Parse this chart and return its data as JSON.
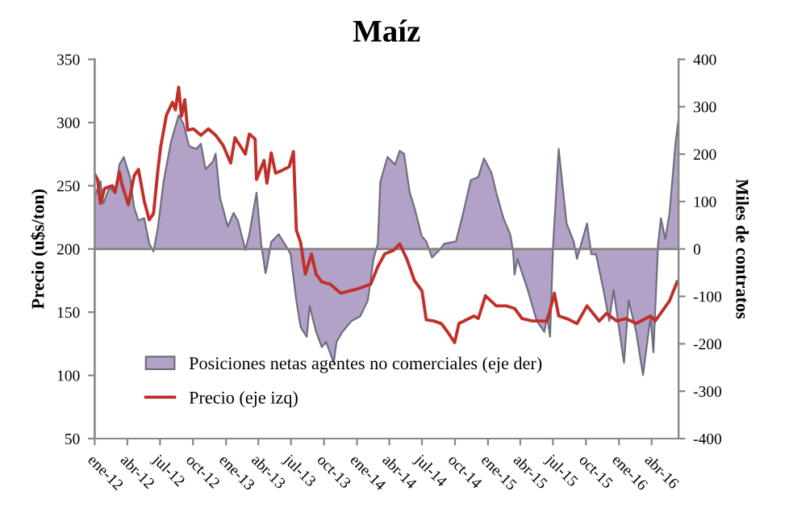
{
  "chart_data": {
    "type": "line",
    "title": "Maíz",
    "ylabel": "Precio (u$s/ton)",
    "y2label": "Miles de contratos",
    "x": [
      "2012-01-01",
      "2012-01-09",
      "2012-01-17",
      "2012-01-29",
      "2012-02-19",
      "2012-02-27",
      "2012-03-10",
      "2012-03-18",
      "2012-04-04",
      "2012-04-20",
      "2012-05-02",
      "2012-05-18",
      "2012-06-01",
      "2012-06-13",
      "2012-06-25",
      "2012-07-03",
      "2012-07-19",
      "2012-08-05",
      "2012-08-13",
      "2012-08-22",
      "2012-08-30",
      "2012-09-08",
      "2012-09-16",
      "2012-10-02",
      "2012-10-23",
      "2012-11-13",
      "2012-12-03",
      "2012-12-24",
      "2013-01-14",
      "2013-01-26",
      "2013-02-24",
      "2013-03-07",
      "2013-03-23",
      "2013-03-27",
      "2013-04-17",
      "2013-04-25",
      "2013-05-07",
      "2013-05-19",
      "2013-06-05",
      "2013-06-26",
      "2013-07-08",
      "2013-07-16",
      "2013-07-28",
      "2013-08-10",
      "2013-08-27",
      "2013-09-09",
      "2013-09-25",
      "2013-10-19",
      "2013-11-17",
      "2013-12-29",
      "2014-02-08",
      "2014-02-28",
      "2014-03-19",
      "2014-04-13",
      "2014-04-30",
      "2014-05-20",
      "2014-06-10",
      "2014-07-01",
      "2014-07-13",
      "2014-08-03",
      "2014-08-24",
      "2014-09-09",
      "2014-09-30",
      "2014-10-12",
      "2014-11-23",
      "2014-12-05",
      "2014-12-25",
      "2015-01-24",
      "2015-02-21",
      "2015-03-16",
      "2015-04-06",
      "2015-05-05",
      "2015-06-15",
      "2015-07-05",
      "2015-07-17",
      "2015-08-08",
      "2015-09-06",
      "2015-10-04",
      "2015-11-07",
      "2015-11-27",
      "2015-12-26",
      "2016-01-20",
      "2016-02-18",
      "2016-03-29",
      "2016-04-11",
      "2016-05-01",
      "2016-05-21",
      "2016-06-11"
    ],
    "series": [
      {
        "name": "Posiciones netas agentes no comerciales (eje der)",
        "type": "area",
        "axis": "y2",
        "color": "#b3a2c7",
        "x": [
          "2012-01-01",
          "2012-01-17",
          "2012-01-25",
          "2012-02-11",
          "2012-02-27",
          "2012-03-10",
          "2012-03-22",
          "2012-04-08",
          "2012-04-20",
          "2012-05-02",
          "2012-05-18",
          "2012-06-01",
          "2012-06-13",
          "2012-06-25",
          "2012-07-11",
          "2012-08-01",
          "2012-08-22",
          "2012-09-04",
          "2012-09-20",
          "2012-10-10",
          "2012-10-23",
          "2012-11-05",
          "2012-11-25",
          "2012-12-03",
          "2012-12-15",
          "2013-01-06",
          "2013-01-22",
          "2013-02-03",
          "2013-02-24",
          "2013-03-07",
          "2013-03-27",
          "2013-04-09",
          "2013-04-21",
          "2013-04-25",
          "2013-05-07",
          "2013-05-28",
          "2013-06-18",
          "2013-06-30",
          "2013-07-16",
          "2013-07-28",
          "2013-08-14",
          "2013-08-22",
          "2013-09-09",
          "2013-09-25",
          "2013-10-07",
          "2013-10-28",
          "2013-11-05",
          "2013-11-21",
          "2013-12-16",
          "2014-01-10",
          "2014-01-31",
          "2014-02-16",
          "2014-02-28",
          "2014-03-07",
          "2014-03-27",
          "2014-04-17",
          "2014-04-30",
          "2014-05-12",
          "2014-05-28",
          "2014-06-10",
          "2014-06-30",
          "2014-07-13",
          "2014-07-29",
          "2014-08-19",
          "2014-09-01",
          "2014-10-04",
          "2014-10-24",
          "2014-11-14",
          "2014-12-05",
          "2014-12-21",
          "2015-01-11",
          "2015-01-24",
          "2015-02-13",
          "2015-03-04",
          "2015-03-12",
          "2015-03-16",
          "2015-03-24",
          "2015-04-22",
          "2015-05-17",
          "2015-06-07",
          "2015-06-15",
          "2015-06-23",
          "2015-07-01",
          "2015-07-17",
          "2015-08-08",
          "2015-08-28",
          "2015-09-06",
          "2015-09-18",
          "2015-10-04",
          "2015-10-16",
          "2015-10-29",
          "2015-11-19",
          "2015-12-05",
          "2015-12-17",
          "2016-01-15",
          "2016-01-28",
          "2016-02-18",
          "2016-03-08",
          "2016-03-29",
          "2016-04-06",
          "2016-04-19",
          "2016-04-27",
          "2016-05-09",
          "2016-05-21",
          "2016-06-07",
          "2016-06-15"
        ],
        "values": [
          110,
          143,
          96,
          130,
          117,
          178,
          194,
          152,
          87,
          60,
          65,
          11,
          -5,
          44,
          142,
          227,
          282,
          265,
          217,
          211,
          222,
          168,
          184,
          201,
          109,
          47,
          76,
          60,
          -2,
          31,
          119,
          11,
          -51,
          -38,
          15,
          31,
          5,
          -11,
          -109,
          -165,
          -185,
          -120,
          -175,
          -207,
          -196,
          -240,
          -196,
          -175,
          -152,
          -142,
          -109,
          -21,
          11,
          142,
          194,
          178,
          207,
          201,
          119,
          87,
          28,
          16,
          -18,
          -2,
          11,
          16,
          76,
          145,
          152,
          191,
          160,
          119,
          65,
          31,
          -5,
          -54,
          -21,
          -87,
          -152,
          -175,
          -142,
          -185,
          0,
          211,
          54,
          15,
          -21,
          11,
          54,
          -11,
          -11,
          -87,
          -152,
          -87,
          -240,
          -109,
          -175,
          -266,
          -142,
          -218,
          11,
          65,
          21,
          76,
          227,
          273
        ]
      },
      {
        "name": "Precio (eje izq)",
        "axis": "y",
        "color": "#c0302b",
        "values": [
          259,
          255,
          236,
          248,
          250,
          245,
          261,
          250,
          235,
          258,
          263,
          238,
          223,
          228,
          262,
          281,
          306,
          316,
          310,
          328,
          305,
          318,
          294,
          295,
          290,
          295,
          290,
          282,
          268,
          288,
          275,
          291,
          287,
          255,
          270,
          252,
          276,
          260,
          262,
          265,
          277,
          215,
          205,
          180,
          196,
          180,
          174,
          172,
          165,
          168,
          172,
          186,
          196,
          199,
          204,
          192,
          175,
          167,
          144,
          143,
          141,
          135,
          126,
          141,
          147,
          145,
          163,
          155,
          155,
          153,
          145,
          143,
          143,
          165,
          147,
          145,
          141,
          155,
          143,
          149,
          143,
          145,
          141,
          147,
          143,
          151,
          159,
          174
        ]
      }
    ],
    "xlim": [
      "2012-01-01",
      "2016-06-15"
    ],
    "xticks": [
      {
        "value": "2012-01-01",
        "label": "ene-12"
      },
      {
        "value": "2012-04-01",
        "label": "abr-12"
      },
      {
        "value": "2012-07-01",
        "label": "jul-12"
      },
      {
        "value": "2012-10-01",
        "label": "oct-12"
      },
      {
        "value": "2013-01-01",
        "label": "ene-13"
      },
      {
        "value": "2013-04-01",
        "label": "abr-13"
      },
      {
        "value": "2013-07-01",
        "label": "jul-13"
      },
      {
        "value": "2013-10-01",
        "label": "oct-13"
      },
      {
        "value": "2014-01-01",
        "label": "ene-14"
      },
      {
        "value": "2014-04-01",
        "label": "abr-14"
      },
      {
        "value": "2014-07-01",
        "label": "jul-14"
      },
      {
        "value": "2014-10-01",
        "label": "oct-14"
      },
      {
        "value": "2015-01-01",
        "label": "ene-15"
      },
      {
        "value": "2015-04-01",
        "label": "abr-15"
      },
      {
        "value": "2015-07-01",
        "label": "jul-15"
      },
      {
        "value": "2015-10-01",
        "label": "oct-15"
      },
      {
        "value": "2016-01-01",
        "label": "ene-16"
      },
      {
        "value": "2016-04-01",
        "label": "abr-16"
      }
    ],
    "ylim": [
      50,
      350
    ],
    "yticks": [
      50,
      100,
      150,
      200,
      250,
      300,
      350
    ],
    "y2lim": [
      -400,
      400
    ],
    "y2ticks": [
      -400,
      -300,
      -200,
      -100,
      0,
      100,
      200,
      300,
      400
    ],
    "ref_lines": [
      {
        "axis": "y2",
        "value": 0,
        "color": "#808080"
      }
    ],
    "legend": "bottom left",
    "grid": false
  }
}
